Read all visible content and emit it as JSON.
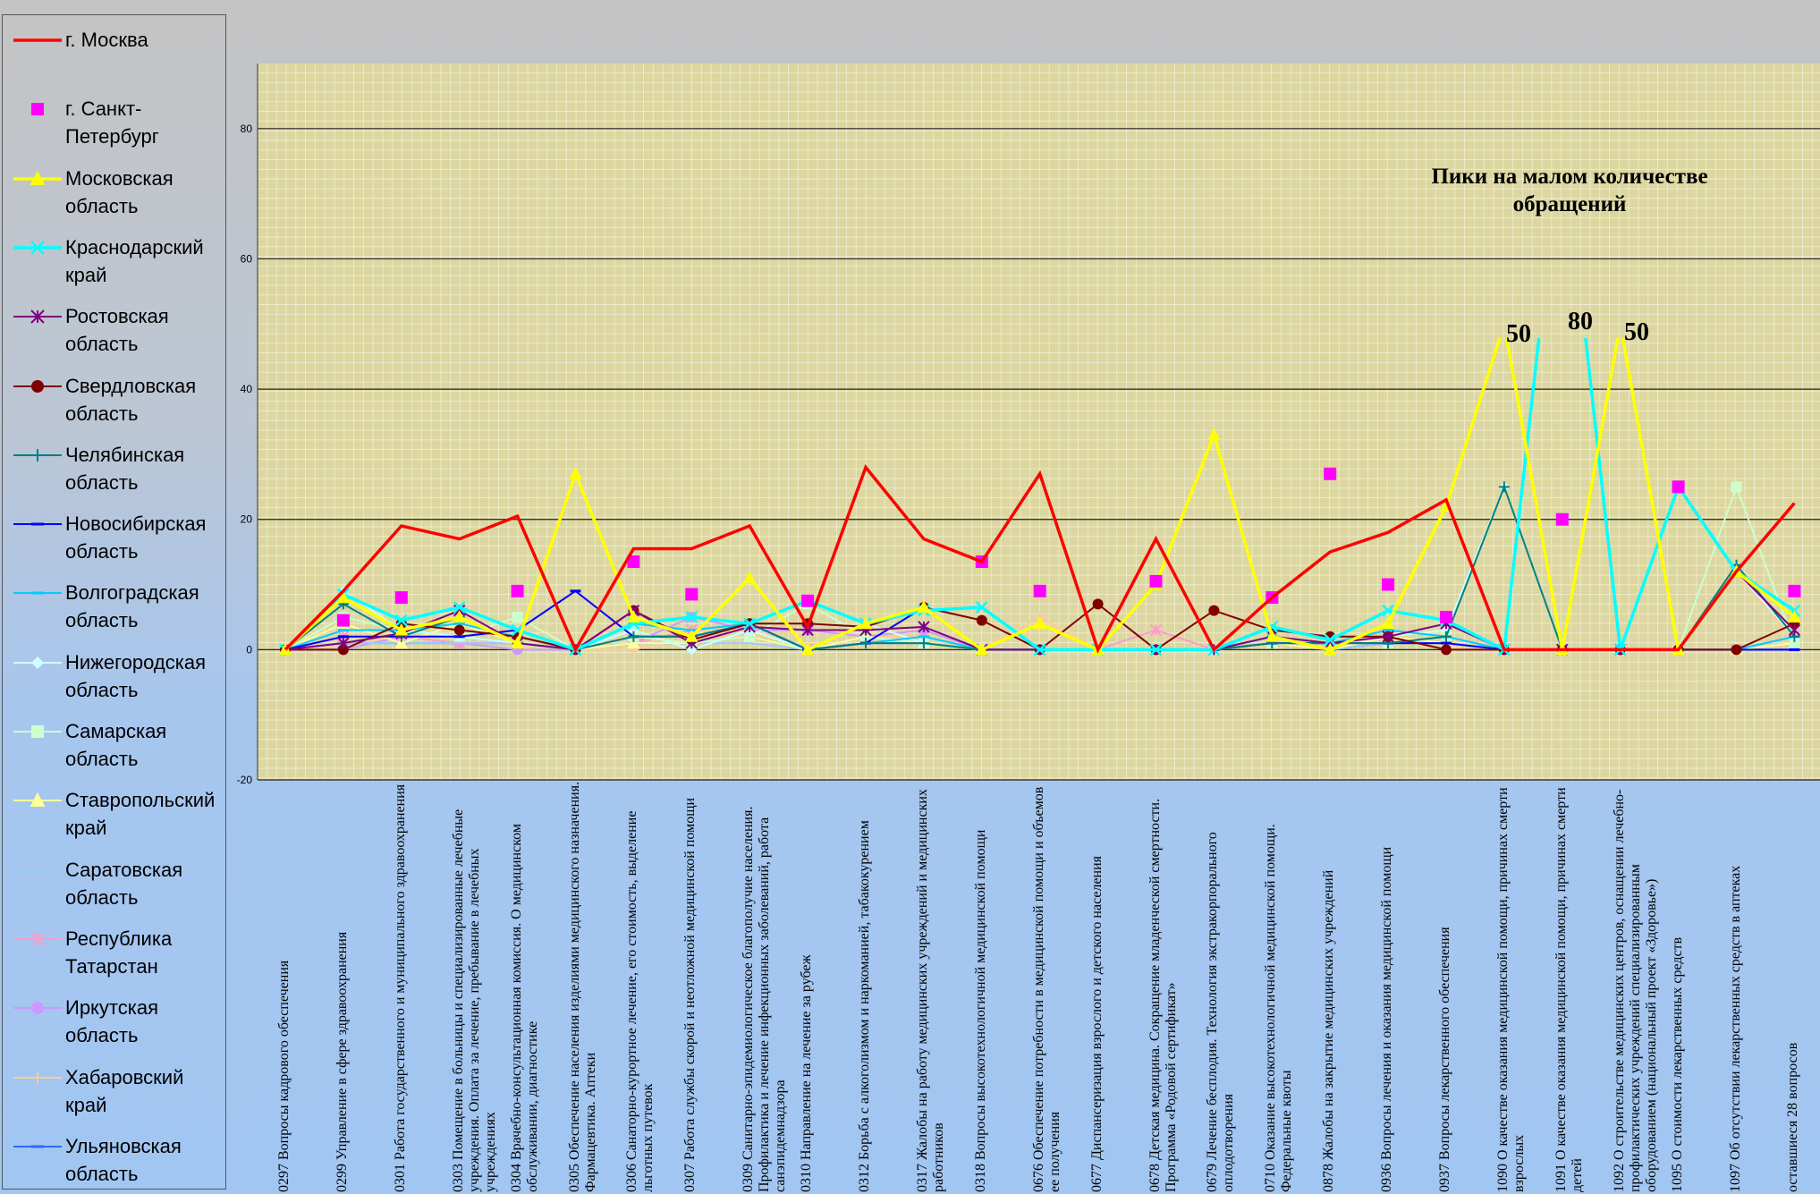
{
  "chart_data": {
    "type": "line",
    "annotations": [
      "Пики на малом количестве обращений",
      "50",
      "80",
      "50"
    ],
    "categories": [
      "0297 Вопросы кадрового обеспечения",
      "0299 Управление в сфере здравоохранения",
      "0301 Работа государственного и муниципального здравоохранения",
      "0303 Помещение в больницы и специализированные лечебные учреждения. Оплата за лечение, пребывание в лечебных учреждениях",
      "0304 Врачебно-консультационная комиссия. О медицинском обслуживании, диагностике",
      "0305 Обеспечение населения изделиями медицинского назначения. Фармацевтика. Аптеки",
      "0306 Санаторно-курортное лечение, его стоимость, выделение льготных путевок",
      "0307 Работа службы скорой и неотложной медицинской помощи",
      "0309 Санитарно-эпидемиологическое благополучие населения. Профилактика и лечение инфекционных заболеваний, работа санэпидемнадзора",
      "0310 Направление на лечение за рубеж",
      "0312 Борьба с алкоголизмом и наркоманией, табакокурением",
      "0317 Жалобы на работу медицинских учреждений и медицинских работников",
      "0318 Вопросы высокотехнологичной медицинской помощи",
      "0676 Обеспечение потребности в медицинской помощи и объемов ее получения",
      "0677 Диспансеризация взрослого и детского населения",
      "0678 Детская медицина. Сокращение младенческой смертности. Программа «Родовой сертификат»",
      "0679 Лечение бесплодия. Технология экстракорпорального оплодотворения",
      "0710 Оказание высокотехнологичной медицинской помощи. Федеральные квоты",
      "0878 Жалобы на закрытие медицинских учреждений",
      "0936 Вопросы лечения и оказания медицинской помощи",
      "0937 Вопросы лекарственного обеспечения",
      "1090 О качестве оказания медицинской помощи, причинах смерти взрослых",
      "1091 О качестве оказания медицинской помощи, причинах смерти детей",
      "1092 О строительстве медицинских центров, оснащении лечебно-профилактических учреждений специализированным оборудованием (национальный проект «Здоровье»)",
      "1095 О стоимости лекарственных средств",
      "1097 Об отсутствии лекарственных средств в аптеках",
      "оставшиеся 28 вопросов"
    ],
    "series": [
      {
        "name": "г. Москва",
        "color": "#ff0000",
        "marker": "none",
        "values": [
          0,
          9,
          19,
          17,
          20.5,
          0,
          15.5,
          15.5,
          19,
          3.5,
          28,
          17,
          13.5,
          27,
          0,
          17,
          0,
          8,
          15,
          18,
          23,
          0,
          0,
          0,
          0,
          12,
          22.5
        ]
      },
      {
        "name": "г. Санкт-Петербург",
        "color": "#ff00ff",
        "marker": "square",
        "line": false,
        "values": [
          null,
          4.5,
          8,
          null,
          9,
          null,
          13.5,
          8.5,
          null,
          7.5,
          null,
          null,
          13.5,
          9,
          null,
          10.5,
          null,
          8,
          27,
          10,
          5,
          null,
          20,
          null,
          25,
          null,
          9
        ]
      },
      {
        "name": "Московская область",
        "color": "#ffff00",
        "marker": "triangle",
        "values": [
          0,
          8,
          3,
          5,
          1,
          27,
          5,
          2,
          11,
          0,
          4,
          6.5,
          0,
          4,
          0,
          10,
          33,
          2,
          0,
          4,
          22,
          50,
          0,
          50,
          0,
          12,
          5
        ]
      },
      {
        "name": "Краснодарский край",
        "color": "#00ffff",
        "marker": "x",
        "values": [
          0,
          8.5,
          4.5,
          6.5,
          3,
          0,
          4,
          5,
          4,
          7.5,
          4,
          6,
          6.5,
          0,
          0,
          0,
          0,
          3.5,
          1.5,
          6,
          4.5,
          0,
          80,
          0,
          25,
          12,
          6
        ]
      },
      {
        "name": "Ростовская область",
        "color": "#800080",
        "marker": "star",
        "values": [
          0,
          1,
          2.5,
          6,
          1,
          0,
          6,
          1,
          3.5,
          3,
          3,
          3.5,
          0,
          0,
          0,
          0,
          0,
          2,
          1,
          2,
          4,
          0,
          0,
          0,
          25,
          12,
          3
        ]
      },
      {
        "name": "Свердловская область",
        "color": "#800000",
        "marker": "circle",
        "values": [
          0,
          0,
          4,
          3,
          2,
          0,
          6,
          1.5,
          4,
          4,
          3.5,
          6.5,
          4.5,
          0,
          7,
          0,
          6,
          3,
          2,
          2,
          0,
          0,
          0,
          0,
          0,
          0,
          4
        ]
      },
      {
        "name": "Челябинская область",
        "color": "#008080",
        "marker": "plus",
        "values": [
          0,
          7,
          2,
          5,
          1,
          0,
          2,
          2,
          4,
          0,
          1,
          1,
          0,
          0,
          0,
          0,
          0,
          1,
          1,
          1,
          2,
          25,
          0,
          0,
          0,
          13,
          2
        ]
      },
      {
        "name": "Новосибирская область",
        "color": "#0000ff",
        "marker": "dash",
        "values": [
          0,
          2,
          2,
          2,
          3,
          9,
          2,
          2,
          4,
          0,
          1,
          6.5,
          0,
          0,
          0,
          0,
          0,
          1,
          1,
          1,
          1,
          0,
          0,
          0,
          0,
          0,
          0
        ]
      },
      {
        "name": "Волгоградская область",
        "color": "#00ccff",
        "marker": "dash",
        "values": [
          0,
          3,
          3,
          4,
          2,
          0,
          4,
          3,
          4,
          0,
          1,
          2,
          0,
          0,
          0,
          0,
          0,
          2,
          1,
          3,
          2,
          0,
          0,
          0,
          0,
          0,
          2
        ]
      },
      {
        "name": "Нижегородская область",
        "color": "#ccffff",
        "marker": "diamond",
        "values": [
          0,
          9,
          3,
          2,
          1,
          0,
          3,
          0,
          3,
          0,
          4,
          1,
          0,
          0,
          0,
          0,
          0,
          2,
          1,
          2,
          3,
          25,
          0,
          0,
          0,
          12,
          2
        ]
      },
      {
        "name": "Самарская область",
        "color": "#ccffcc",
        "marker": "square",
        "values": [
          0,
          5,
          3,
          2,
          5,
          0,
          2,
          1,
          2,
          7,
          2,
          1,
          0,
          0,
          0,
          0,
          0,
          1,
          1,
          1,
          2,
          0,
          0,
          0,
          0,
          25,
          1
        ]
      },
      {
        "name": "Ставропольский край",
        "color": "#ffff99",
        "marker": "triangle",
        "values": [
          0,
          4,
          1,
          4,
          1,
          0,
          1,
          1,
          2,
          0,
          2,
          1,
          0,
          0,
          0,
          0,
          0,
          1,
          0,
          2,
          1,
          0,
          0,
          0,
          0,
          0,
          1
        ]
      },
      {
        "name": "Саратовская область",
        "color": "#99ccff",
        "marker": "none",
        "values": [
          0,
          1,
          1,
          1,
          1,
          0,
          1,
          1,
          1,
          0,
          1,
          1,
          0,
          0,
          0,
          0,
          0,
          1,
          0,
          1,
          1,
          0,
          0,
          0,
          0,
          0,
          1
        ]
      },
      {
        "name": "Республика Татарстан",
        "color": "#ff99cc",
        "marker": "star",
        "values": [
          0,
          2,
          2,
          1,
          1,
          0,
          1,
          3,
          4,
          0,
          2,
          1,
          0,
          0,
          0,
          3,
          0,
          2,
          1,
          2,
          1,
          0,
          0,
          0,
          0,
          0,
          2
        ]
      },
      {
        "name": "Иркутская область",
        "color": "#cc99ff",
        "marker": "circle",
        "values": [
          0,
          0,
          2,
          1,
          0,
          0,
          1,
          5,
          3,
          3,
          2,
          3,
          0,
          0,
          0,
          0,
          0,
          1,
          1,
          1,
          2,
          0,
          0,
          0,
          0,
          12,
          2
        ]
      },
      {
        "name": "Хабаровский край",
        "color": "#ffcc99",
        "marker": "plus",
        "values": [
          0,
          1,
          2,
          2,
          1,
          0,
          0,
          2,
          2,
          3,
          2,
          2,
          0,
          5,
          0,
          0,
          0,
          1,
          1,
          1,
          1,
          0,
          0,
          0,
          0,
          12,
          1
        ]
      },
      {
        "name": "Ульяновская область",
        "color": "#3366ff",
        "marker": "dash",
        "values": [
          0,
          1,
          1,
          1,
          1,
          0,
          1,
          1,
          2,
          0,
          1,
          1,
          0,
          0,
          0,
          0,
          0,
          1,
          0,
          1,
          1,
          0,
          0,
          0,
          0,
          0,
          0
        ]
      }
    ],
    "ylim": [
      -20,
      90
    ],
    "yticks": [
      -20,
      0,
      20,
      40,
      60,
      80
    ],
    "grid": true
  }
}
